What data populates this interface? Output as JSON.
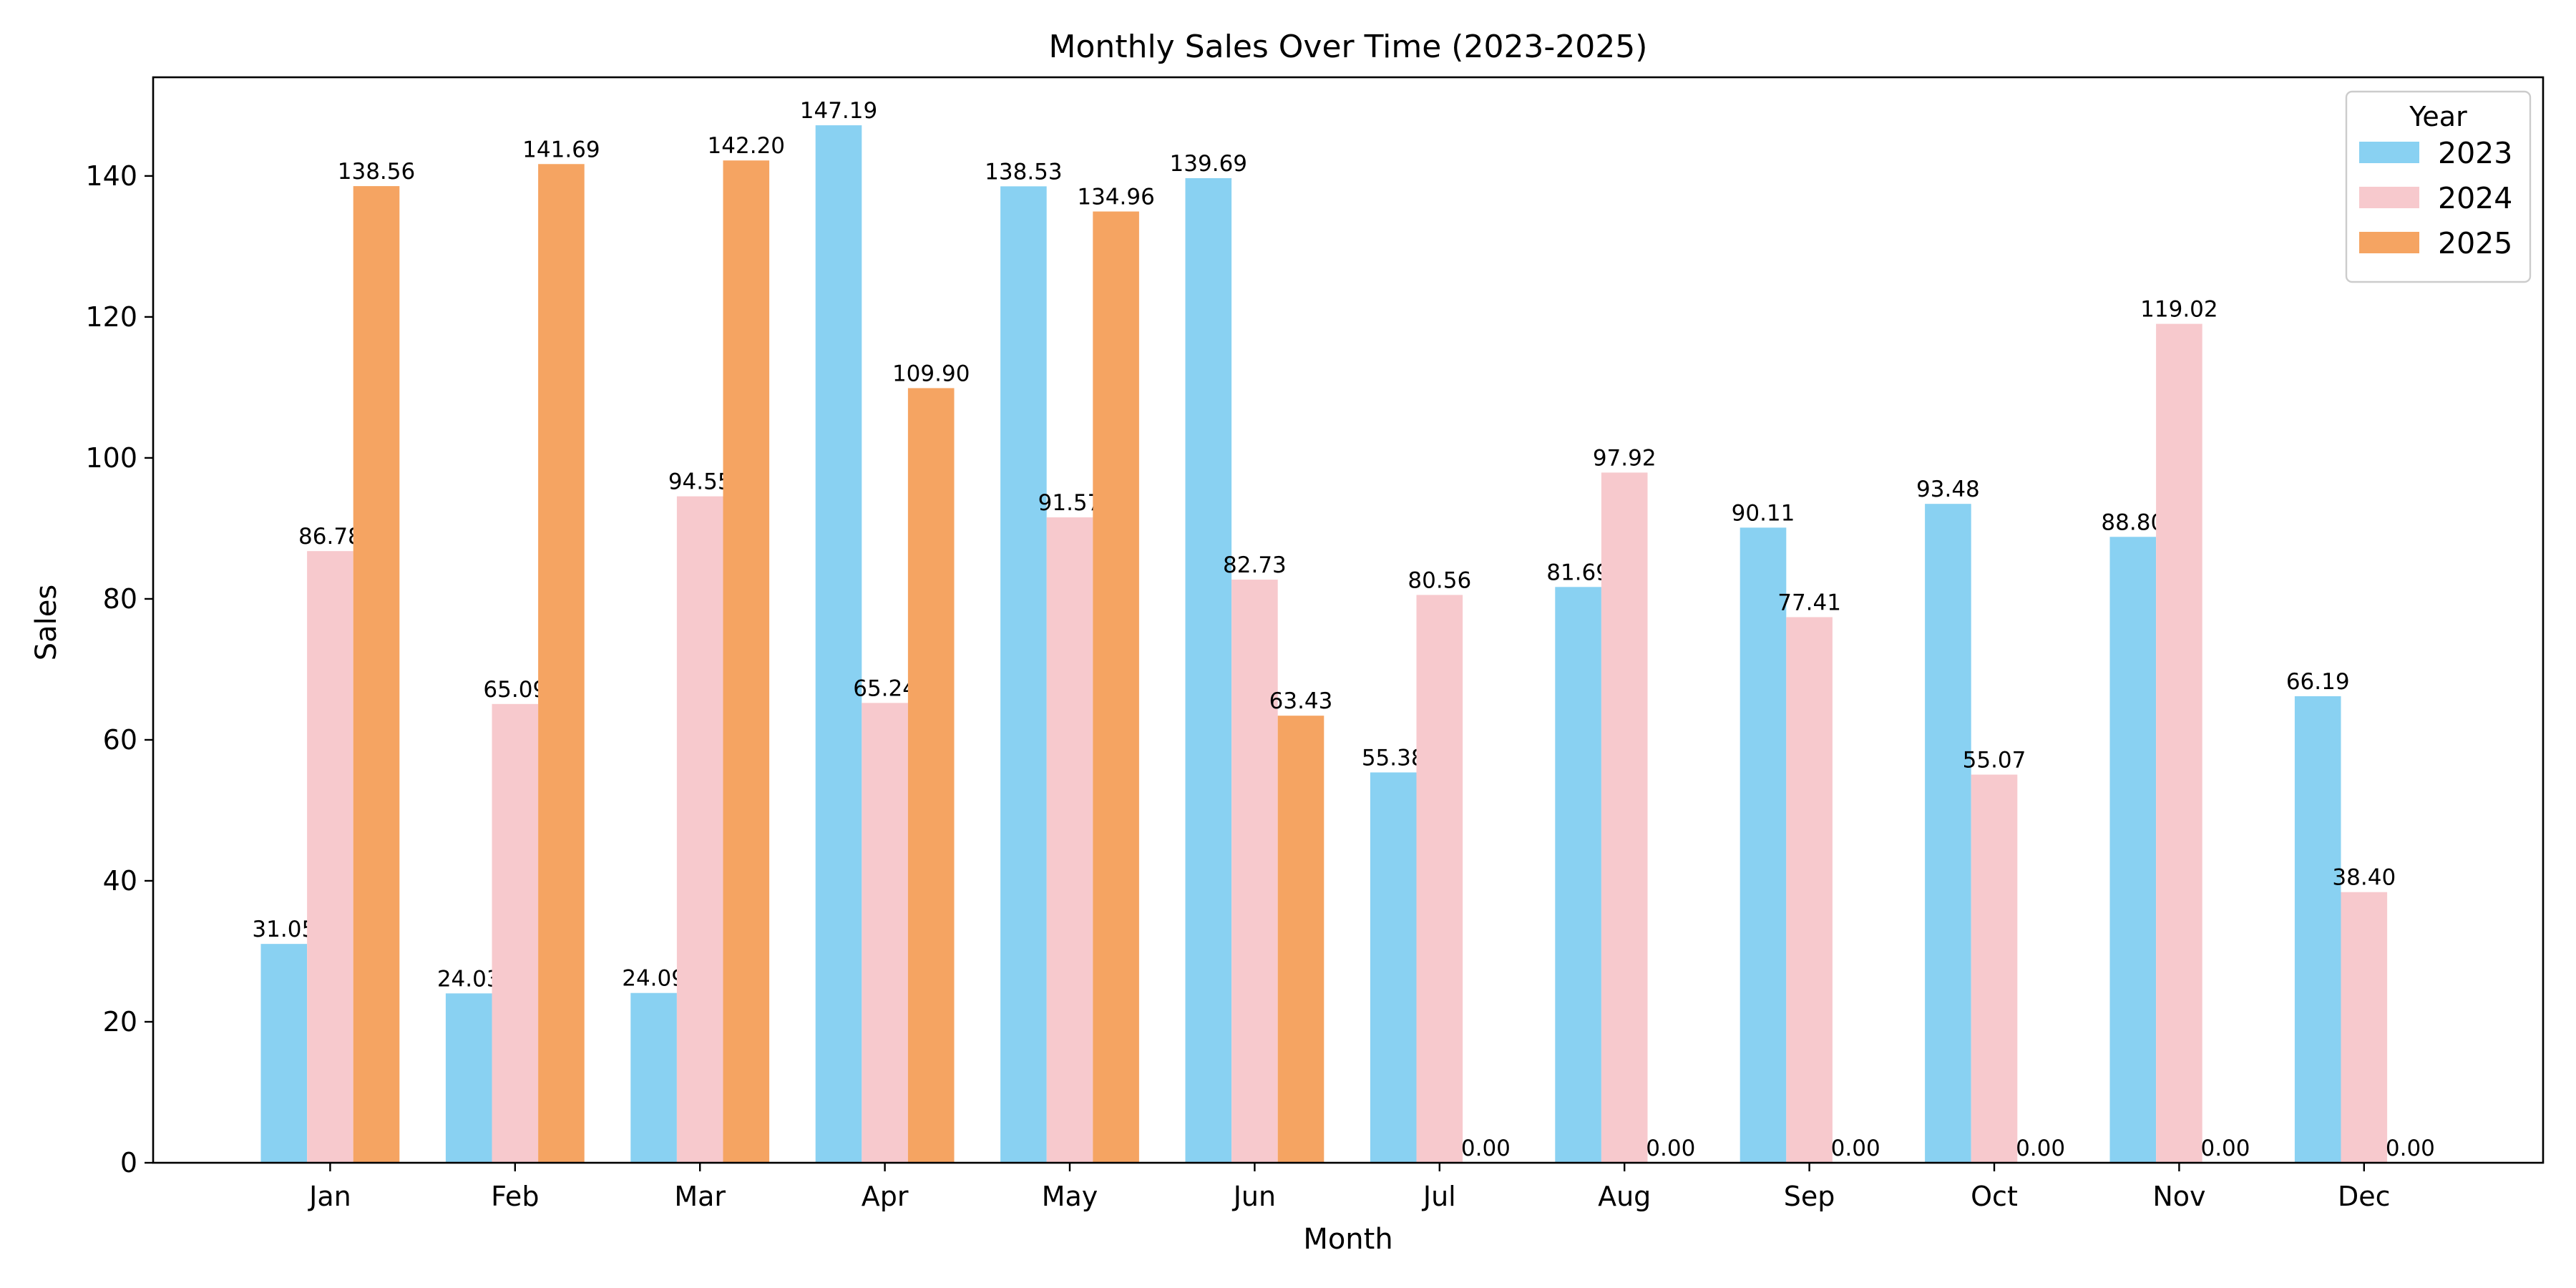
{
  "chart_data": {
    "type": "bar",
    "title": "Monthly Sales Over Time (2023-2025)",
    "xlabel": "Month",
    "ylabel": "Sales",
    "categories": [
      "Jan",
      "Feb",
      "Mar",
      "Apr",
      "May",
      "Jun",
      "Jul",
      "Aug",
      "Sep",
      "Oct",
      "Nov",
      "Dec"
    ],
    "ylim": [
      0,
      154
    ],
    "yticks": [
      0,
      20,
      40,
      60,
      80,
      100,
      120,
      140
    ],
    "grid": false,
    "legend": {
      "title": "Year",
      "placement": "top-right"
    },
    "series": [
      {
        "name": "2023",
        "color": "#89d1f2",
        "values": [
          31.05,
          24.03,
          24.09,
          147.19,
          138.53,
          139.69,
          55.38,
          81.69,
          90.11,
          93.48,
          88.8,
          66.19
        ],
        "labels": [
          "31.05",
          "24.03",
          "24.09",
          "147.19",
          "138.53",
          "139.69",
          "55.38",
          "81.69",
          "90.11",
          "93.48",
          "88.80",
          "66.19"
        ]
      },
      {
        "name": "2024",
        "color": "#f7c9cd",
        "values": [
          86.78,
          65.09,
          94.55,
          65.24,
          91.57,
          82.73,
          80.56,
          97.92,
          77.41,
          55.07,
          119.02,
          38.4
        ],
        "labels": [
          "86.78",
          "65.09",
          "94.55",
          "65.24",
          "91.57",
          "82.73",
          "80.56",
          "97.92",
          "77.41",
          "55.07",
          "119.02",
          "38.40"
        ]
      },
      {
        "name": "2025",
        "color": "#f5a462",
        "values": [
          138.56,
          141.69,
          142.2,
          109.9,
          134.96,
          63.43,
          0.0,
          0.0,
          0.0,
          0.0,
          0.0,
          0.0
        ],
        "labels": [
          "138.56",
          "141.69",
          "142.20",
          "109.90",
          "134.96",
          "63.43",
          "0.00",
          "0.00",
          "0.00",
          "0.00",
          "0.00",
          "0.00"
        ]
      }
    ]
  }
}
